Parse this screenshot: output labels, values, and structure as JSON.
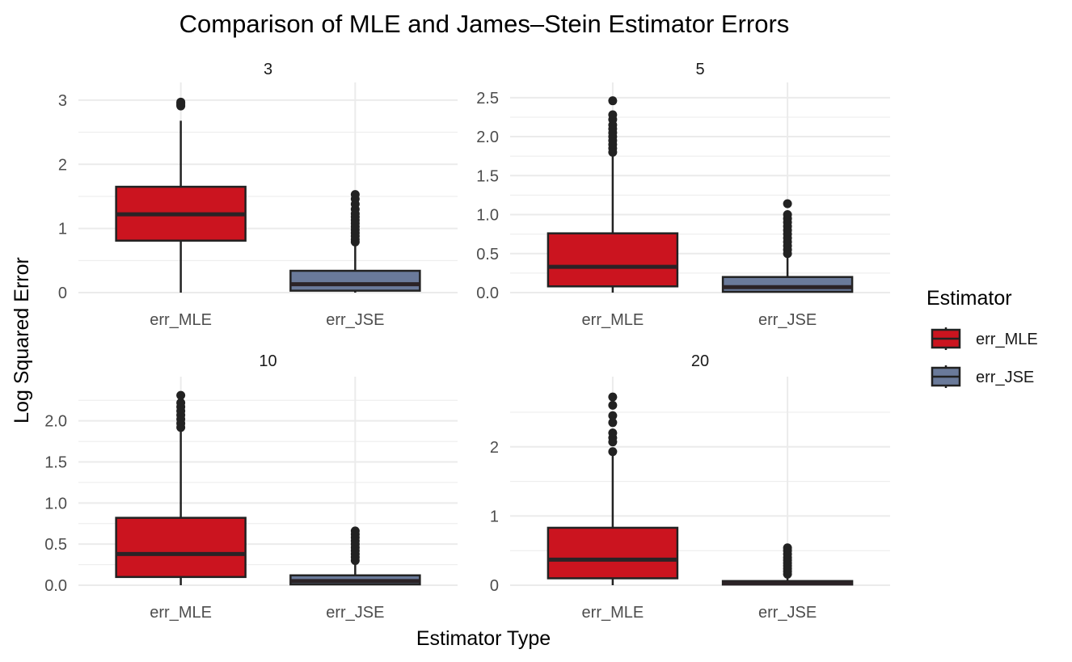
{
  "chart_data": {
    "type": "boxplot",
    "title": "Comparison of MLE and James–Stein Estimator Errors",
    "xlabel": "Estimator Type",
    "ylabel": "Log Squared Error",
    "categories": [
      "err_MLE",
      "err_JSE"
    ],
    "legend": {
      "title": "Estimator",
      "placement": "right",
      "entries": [
        {
          "label": "err_MLE",
          "color": "#cb141f"
        },
        {
          "label": "err_JSE",
          "color": "#6a7a9a"
        }
      ]
    },
    "grid": true,
    "panels": [
      {
        "label": "3",
        "ylim": [
          0,
          3.1
        ],
        "yticks": [
          "0",
          "1",
          "2",
          "3"
        ],
        "ytick_values": [
          0,
          1,
          2,
          3
        ],
        "boxes": [
          {
            "category": "err_MLE",
            "min": 0,
            "q1": 0.81,
            "median": 1.22,
            "q3": 1.65,
            "max": 2.68,
            "outliers": [
              2.91,
              2.93,
              2.95,
              2.97
            ]
          },
          {
            "category": "err_JSE",
            "min": 0,
            "q1": 0.03,
            "median": 0.13,
            "q3": 0.34,
            "max": 0.77,
            "outliers": [
              0.79,
              0.83,
              0.88,
              0.93,
              0.98,
              1.03,
              1.08,
              1.13,
              1.18,
              1.23,
              1.3,
              1.38,
              1.46,
              1.53
            ]
          }
        ]
      },
      {
        "label": "5",
        "ylim": [
          0,
          2.55
        ],
        "yticks": [
          "0.0",
          "0.5",
          "1.0",
          "1.5",
          "2.0",
          "2.5"
        ],
        "ytick_values": [
          0,
          0.5,
          1,
          1.5,
          2,
          2.5
        ],
        "boxes": [
          {
            "category": "err_MLE",
            "min": 0,
            "q1": 0.08,
            "median": 0.33,
            "q3": 0.76,
            "max": 1.78,
            "outliers": [
              1.8,
              1.85,
              1.9,
              1.95,
              2.0,
              2.05,
              2.1,
              2.15,
              2.22,
              2.28,
              2.46
            ]
          },
          {
            "category": "err_JSE",
            "min": 0,
            "q1": 0.01,
            "median": 0.07,
            "q3": 0.2,
            "max": 0.48,
            "outliers": [
              0.5,
              0.55,
              0.6,
              0.65,
              0.7,
              0.75,
              0.8,
              0.85,
              0.9,
              0.95,
              1.0,
              1.14
            ]
          }
        ]
      },
      {
        "label": "10",
        "ylim": [
          0,
          2.4
        ],
        "yticks": [
          "0.0",
          "0.5",
          "1.0",
          "1.5",
          "2.0"
        ],
        "ytick_values": [
          0,
          0.5,
          1,
          1.5,
          2
        ],
        "boxes": [
          {
            "category": "err_MLE",
            "min": 0,
            "q1": 0.1,
            "median": 0.38,
            "q3": 0.82,
            "max": 1.9,
            "outliers": [
              1.92,
              1.97,
              2.02,
              2.07,
              2.12,
              2.17,
              2.22,
              2.31
            ]
          },
          {
            "category": "err_JSE",
            "min": 0,
            "q1": 0.01,
            "median": 0.05,
            "q3": 0.12,
            "max": 0.28,
            "outliers": [
              0.3,
              0.34,
              0.38,
              0.42,
              0.46,
              0.5,
              0.54,
              0.58,
              0.62,
              0.66
            ]
          }
        ]
      },
      {
        "label": "20",
        "ylim": [
          0,
          2.85
        ],
        "yticks": [
          "0",
          "1",
          "2"
        ],
        "ytick_values": [
          0,
          1,
          2
        ],
        "boxes": [
          {
            "category": "err_MLE",
            "min": 0,
            "q1": 0.1,
            "median": 0.37,
            "q3": 0.83,
            "max": 1.9,
            "outliers": [
              1.93,
              2.07,
              2.13,
              2.2,
              2.35,
              2.45,
              2.6,
              2.72
            ]
          },
          {
            "category": "err_JSE",
            "min": 0,
            "q1": 0.01,
            "median": 0.03,
            "q3": 0.06,
            "max": 0.14,
            "outliers": [
              0.16,
              0.2,
              0.24,
              0.28,
              0.32,
              0.36,
              0.4,
              0.45,
              0.5,
              0.54
            ]
          }
        ]
      }
    ]
  }
}
